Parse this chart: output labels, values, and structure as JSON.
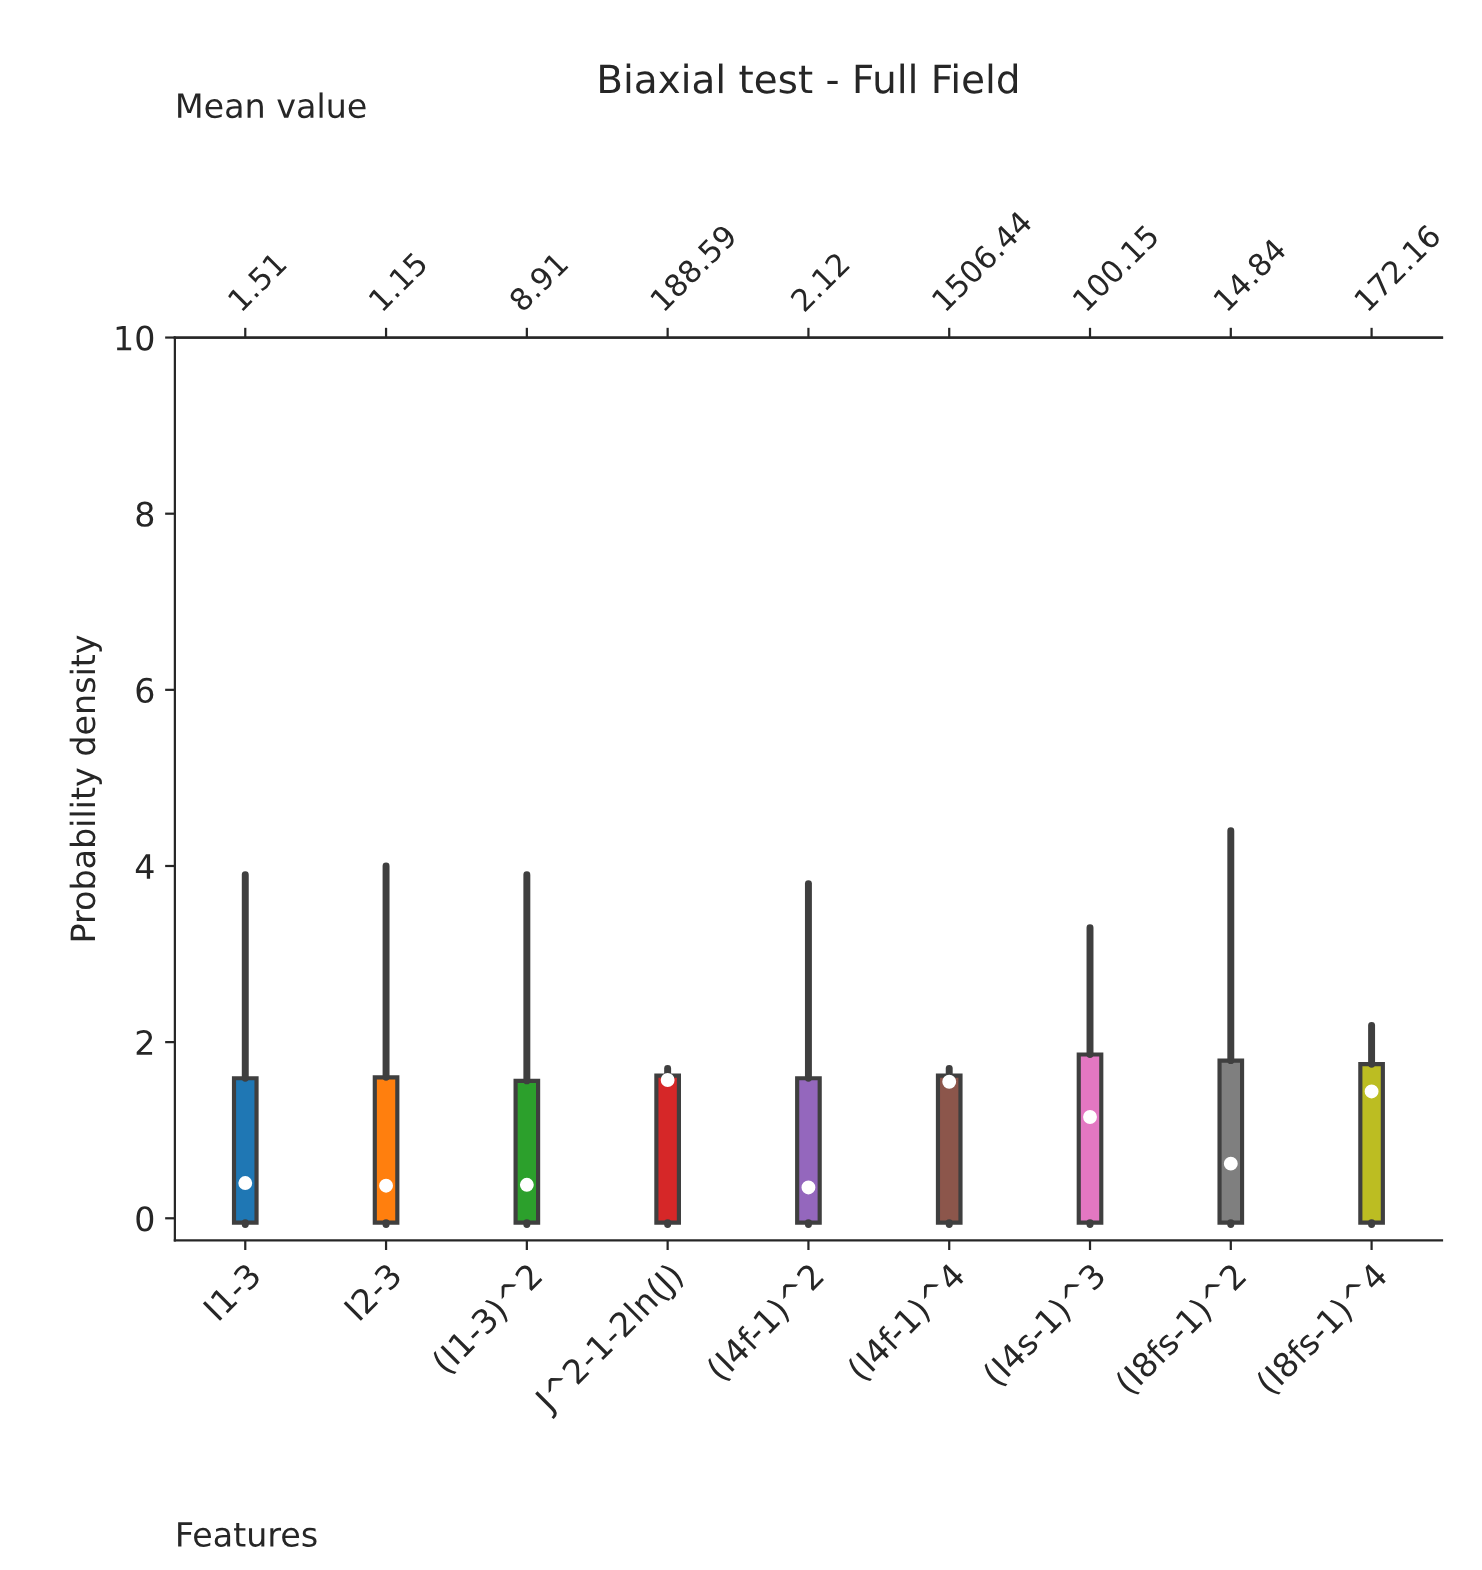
{
  "chart_data": {
    "type": "box",
    "title": "Biaxial test - Full Field",
    "xlabel": "Features",
    "ylabel": "Probability density",
    "x2label": "Mean value",
    "categories": [
      "I1-3",
      "I2-3",
      "(I1-3)^2",
      "J^2-1-2ln(J)",
      "(I4f-1)^2",
      "(I4f-1)^4",
      "(I4s-1)^3",
      "(I8fs-1)^2",
      "(I8fs-1)^4"
    ],
    "colors": [
      "#1f77b4",
      "#ff7f0e",
      "#2ca02c",
      "#d62728",
      "#9467bd",
      "#8c564b",
      "#e377c2",
      "#7f7f7f",
      "#bcbd22"
    ],
    "boxes": [
      {
        "low": -0.07,
        "q1": -0.05,
        "median": 0.4,
        "q3": 1.59,
        "high": 3.9
      },
      {
        "low": -0.07,
        "q1": -0.05,
        "median": 0.37,
        "q3": 1.6,
        "high": 4.0
      },
      {
        "low": -0.07,
        "q1": -0.05,
        "median": 0.38,
        "q3": 1.56,
        "high": 3.9
      },
      {
        "low": -0.07,
        "q1": -0.05,
        "median": 1.57,
        "q3": 1.62,
        "high": 1.7
      },
      {
        "low": -0.07,
        "q1": -0.05,
        "median": 0.35,
        "q3": 1.59,
        "high": 3.8
      },
      {
        "low": -0.07,
        "q1": -0.05,
        "median": 1.55,
        "q3": 1.62,
        "high": 1.7
      },
      {
        "low": -0.07,
        "q1": -0.05,
        "median": 1.15,
        "q3": 1.86,
        "high": 3.3
      },
      {
        "low": -0.07,
        "q1": -0.05,
        "median": 0.62,
        "q3": 1.79,
        "high": 4.4
      },
      {
        "low": -0.07,
        "q1": -0.05,
        "median": 1.44,
        "q3": 1.75,
        "high": 2.19
      }
    ],
    "annotations": [
      "1.51",
      "1.15",
      "8.91",
      "188.59",
      "2.12",
      "1506.44",
      "100.15",
      "14.84",
      "172.16"
    ],
    "ylim": [
      -0.25,
      10
    ],
    "yticks": [
      0,
      2,
      4,
      6,
      8,
      10
    ],
    "grid": false
  }
}
